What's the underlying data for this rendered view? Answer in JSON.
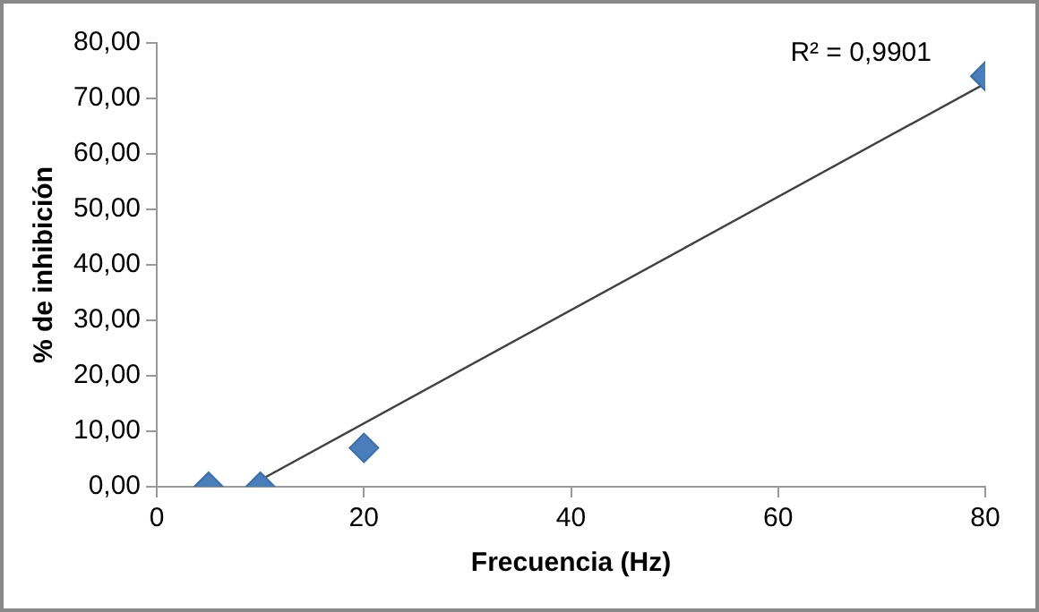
{
  "chart_data": {
    "type": "scatter",
    "xlabel": "Frecuencia (Hz)",
    "ylabel": "% de inhibición",
    "marker": "diamond",
    "grid": false,
    "legend": false,
    "xlim": [
      0,
      80
    ],
    "xticks": [
      0,
      20,
      40,
      60,
      80
    ],
    "ylim": [
      0,
      80
    ],
    "yticks": [
      {
        "value": 0,
        "label": "0,00"
      },
      {
        "value": 10,
        "label": "10,00"
      },
      {
        "value": 20,
        "label": "20,00"
      },
      {
        "value": 30,
        "label": "30,00"
      },
      {
        "value": 40,
        "label": "40,00"
      },
      {
        "value": 50,
        "label": "50,00"
      },
      {
        "value": 60,
        "label": "60,00"
      },
      {
        "value": 70,
        "label": "70,00"
      },
      {
        "value": 80,
        "label": "80,00"
      }
    ],
    "series": [
      {
        "type": "scatter",
        "color": "#4a7ebb",
        "x": [
          5,
          10,
          20,
          80
        ],
        "values": [
          0,
          0,
          7,
          74
        ]
      },
      {
        "type": "line",
        "color": "#404040",
        "marker": "none",
        "line_style": "solid",
        "x": [
          9.6,
          80
        ],
        "values": [
          0.8,
          72.7
        ]
      }
    ],
    "annotations": [
      "R² = 0,9901"
    ]
  }
}
